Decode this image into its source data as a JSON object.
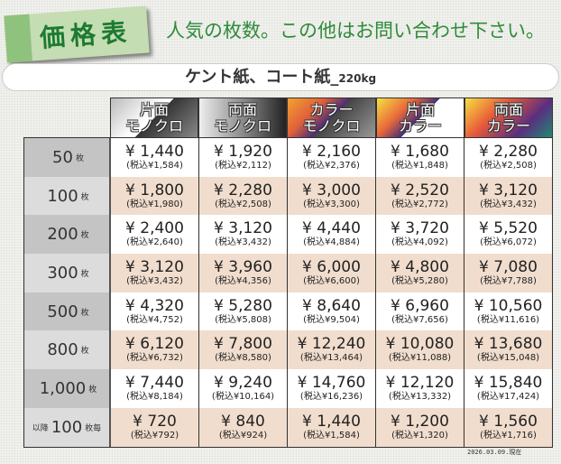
{
  "header": {
    "tag": "価格表",
    "subtitle": "人気の枚数。この他はお問い合わせ下さい。"
  },
  "band": {
    "title": "ケント紙、コート紙_",
    "weight": "220kg"
  },
  "columns": [
    {
      "line1": "片面",
      "line2": "モノクロ",
      "bg": "linear-gradient(135deg,#bbb 0%,#fff 45%,#fff 50%,#333 50%,#888 100%)"
    },
    {
      "line1": "両面",
      "line2": "モノクロ",
      "bg": "linear-gradient(90deg,#eee,#777 60%,#222)"
    },
    {
      "line1": "カラー",
      "line2": "モノクロ",
      "bg": "linear-gradient(135deg,#f3a12f,#e0603a 30%,#4a2e78 50%,#444 50%,#999 100%)"
    },
    {
      "line1": "片面",
      "line2": "カラー",
      "bg": "linear-gradient(135deg,#f6e040,#e8693a 30%,#4a2e78 50%,#fff 50%,#fff 100%)"
    },
    {
      "line1": "両面",
      "line2": "カラー",
      "bg": "linear-gradient(135deg,#f6df40,#e85a3a 35%,#5a2e80 70%,#1e8a70)"
    }
  ],
  "rows": [
    {
      "qty": "50",
      "unit": "枚",
      "prefix": "",
      "prices": [
        "¥ 1,440",
        "¥ 1,920",
        "¥ 2,160",
        "¥ 1,680",
        "¥ 2,280"
      ],
      "tax": [
        "(税込¥1,584)",
        "(税込¥2,112)",
        "(税込¥2,376)",
        "(税込¥1,848)",
        "(税込¥2,508)"
      ]
    },
    {
      "qty": "100",
      "unit": "枚",
      "prefix": "",
      "prices": [
        "¥ 1,800",
        "¥ 2,280",
        "¥ 3,000",
        "¥ 2,520",
        "¥ 3,120"
      ],
      "tax": [
        "(税込¥1,980)",
        "(税込¥2,508)",
        "(税込¥3,300)",
        "(税込¥2,772)",
        "(税込¥3,432)"
      ]
    },
    {
      "qty": "200",
      "unit": "枚",
      "prefix": "",
      "prices": [
        "¥ 2,400",
        "¥ 3,120",
        "¥ 4,440",
        "¥ 3,720",
        "¥ 5,520"
      ],
      "tax": [
        "(税込¥2,640)",
        "(税込¥3,432)",
        "(税込¥4,884)",
        "(税込¥4,092)",
        "(税込¥6,072)"
      ]
    },
    {
      "qty": "300",
      "unit": "枚",
      "prefix": "",
      "prices": [
        "¥ 3,120",
        "¥ 3,960",
        "¥ 6,000",
        "¥ 4,800",
        "¥ 7,080"
      ],
      "tax": [
        "(税込¥3,432)",
        "(税込¥4,356)",
        "(税込¥6,600)",
        "(税込¥5,280)",
        "(税込¥7,788)"
      ]
    },
    {
      "qty": "500",
      "unit": "枚",
      "prefix": "",
      "prices": [
        "¥ 4,320",
        "¥ 5,280",
        "¥ 8,640",
        "¥ 6,960",
        "¥ 10,560"
      ],
      "tax": [
        "(税込¥4,752)",
        "(税込¥5,808)",
        "(税込¥9,504)",
        "(税込¥7,656)",
        "(税込¥11,616)"
      ]
    },
    {
      "qty": "800",
      "unit": "枚",
      "prefix": "",
      "prices": [
        "¥ 6,120",
        "¥ 7,800",
        "¥ 12,240",
        "¥ 10,080",
        "¥ 13,680"
      ],
      "tax": [
        "(税込¥6,732)",
        "(税込¥8,580)",
        "(税込¥13,464)",
        "(税込¥11,088)",
        "(税込¥15,048)"
      ]
    },
    {
      "qty": "1,000",
      "unit": "枚",
      "prefix": "",
      "prices": [
        "¥ 7,440",
        "¥ 9,240",
        "¥ 14,760",
        "¥ 12,120",
        "¥ 15,840"
      ],
      "tax": [
        "(税込¥8,184)",
        "(税込¥10,164)",
        "(税込¥16,236)",
        "(税込¥13,332)",
        "(税込¥17,424)"
      ]
    },
    {
      "qty": "100",
      "unit": "枚毎",
      "prefix": "以降",
      "prices": [
        "¥ 720",
        "¥ 840",
        "¥ 1,440",
        "¥ 1,200",
        "¥ 1,560"
      ],
      "tax": [
        "(税込¥792)",
        "(税込¥924)",
        "(税込¥1,584)",
        "(税込¥1,320)",
        "(税込¥1,716)"
      ]
    }
  ],
  "colors": {
    "row_alt": "#f1ddcd",
    "label_dark": "#c4c4c4",
    "label_light": "#dcdcdc"
  },
  "footer": {
    "date": "2026.03.09.現在"
  }
}
